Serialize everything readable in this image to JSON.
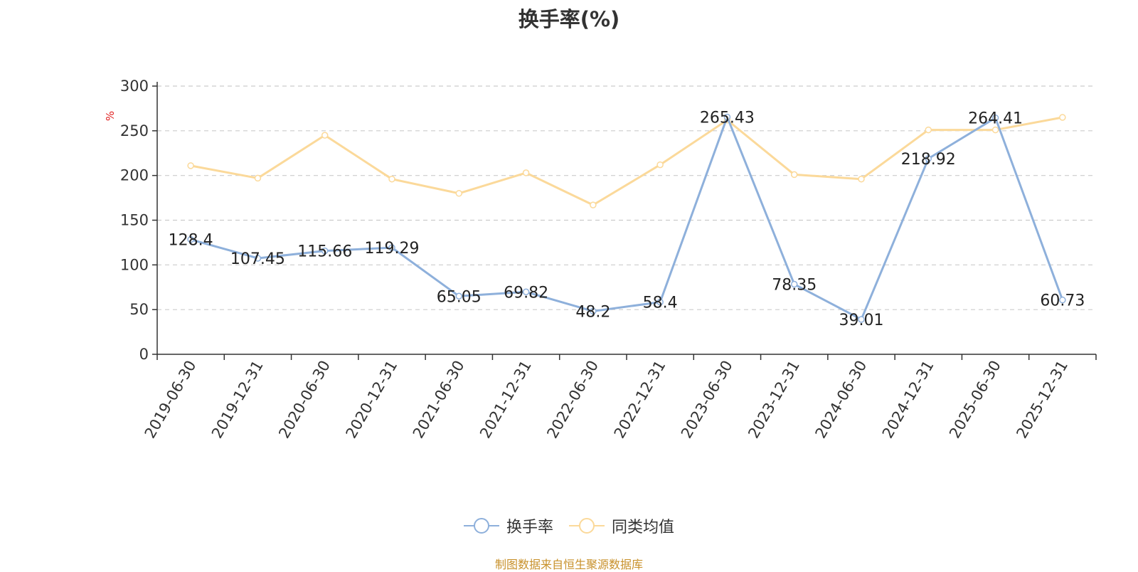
{
  "chart_data": {
    "type": "line",
    "title": "换手率(%)",
    "ylabel": "%",
    "ylim": [
      0,
      300
    ],
    "yticks": [
      0,
      50,
      100,
      150,
      200,
      250,
      300
    ],
    "grid": true,
    "legend_position": "bottom",
    "categories": [
      "2019-06-30",
      "2019-12-31",
      "2020-06-30",
      "2020-12-31",
      "2021-06-30",
      "2021-12-31",
      "2022-06-30",
      "2022-12-31",
      "2023-06-30",
      "2023-12-31",
      "2024-06-30",
      "2024-12-31",
      "2025-06-30",
      "2025-12-31"
    ],
    "series": [
      {
        "name": "换手率",
        "color": "#8eb0db",
        "labels": true,
        "values": [
          128.4,
          107.45,
          115.66,
          119.29,
          65.05,
          69.82,
          48.2,
          58.4,
          265.43,
          78.35,
          39.01,
          218.92,
          264.41,
          60.73
        ]
      },
      {
        "name": "同类均值",
        "color": "#fbd99a",
        "labels": false,
        "values": [
          211,
          197,
          245,
          196,
          180,
          203,
          167,
          212,
          262,
          201,
          196,
          251,
          251,
          265
        ]
      }
    ],
    "source_note": "制图数据来自恒生聚源数据库"
  }
}
